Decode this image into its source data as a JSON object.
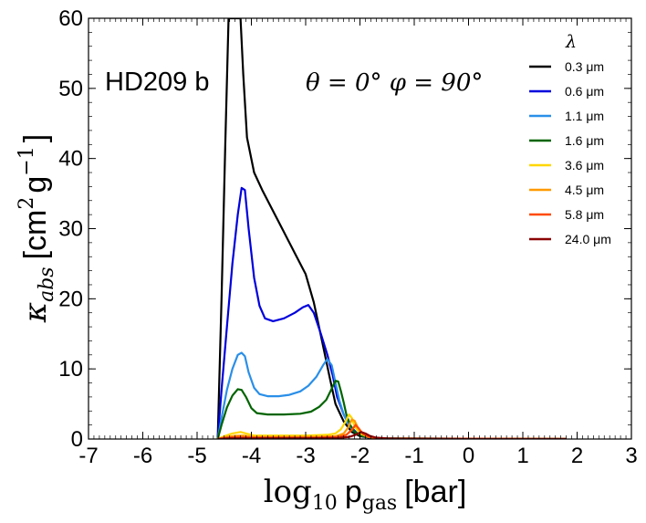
{
  "chart_data": {
    "type": "line",
    "title": "",
    "xlabel": "log10 p_gas [bar]",
    "xlabel_parts": {
      "main": "log",
      "sub_main": "10",
      "var": "p",
      "sub_var": "gas",
      "unit": "[bar]"
    },
    "ylabel": "κ_abs [cm^2 g^-1]",
    "ylabel_parts": {
      "kappa": "κ",
      "kappa_sub": "abs",
      "unit_open": "[cm",
      "exp1": "2",
      "unit_mid": "g",
      "exp2": "−1",
      "unit_close": "]"
    },
    "xlim": [
      -7,
      3
    ],
    "ylim": [
      0,
      60
    ],
    "xticks": [
      -7,
      -6,
      -5,
      -4,
      -3,
      -2,
      -1,
      0,
      1,
      2,
      3
    ],
    "yticks": [
      0,
      10,
      20,
      30,
      40,
      50,
      60
    ],
    "annotations": {
      "planet": "HD209 b",
      "angles": "θ = 0°  φ = 90°"
    },
    "legend": {
      "title": "λ",
      "location": "top-right"
    },
    "series": [
      {
        "name": "0.3 μm",
        "color": "#000000",
        "points": [
          [
            -4.62,
            0
          ],
          [
            -4.55,
            20
          ],
          [
            -4.48,
            42
          ],
          [
            -4.42,
            60
          ],
          [
            -4.2,
            60
          ],
          [
            -4.15,
            52
          ],
          [
            -4.08,
            43
          ],
          [
            -3.95,
            38
          ],
          [
            -3.8,
            35.5
          ],
          [
            -3.6,
            32.5
          ],
          [
            -3.4,
            29.5
          ],
          [
            -3.2,
            26.5
          ],
          [
            -3.0,
            23.5
          ],
          [
            -2.85,
            19.5
          ],
          [
            -2.7,
            14
          ],
          [
            -2.55,
            8.5
          ],
          [
            -2.45,
            5
          ],
          [
            -2.3,
            2.5
          ],
          [
            -2.15,
            1
          ],
          [
            -2.0,
            0.4
          ],
          [
            -1.8,
            0.15
          ],
          [
            -1.5,
            0.05
          ],
          [
            1.8,
            0
          ]
        ]
      },
      {
        "name": "0.6 μm",
        "color": "#0000dd",
        "points": [
          [
            -4.62,
            0
          ],
          [
            -4.55,
            7
          ],
          [
            -4.45,
            16
          ],
          [
            -4.35,
            25
          ],
          [
            -4.25,
            32
          ],
          [
            -4.18,
            35.8
          ],
          [
            -4.12,
            35.5
          ],
          [
            -4.05,
            30
          ],
          [
            -3.95,
            23
          ],
          [
            -3.85,
            19
          ],
          [
            -3.75,
            17.2
          ],
          [
            -3.6,
            16.8
          ],
          [
            -3.4,
            17.2
          ],
          [
            -3.2,
            18
          ],
          [
            -3.05,
            18.8
          ],
          [
            -2.95,
            19.1
          ],
          [
            -2.85,
            18
          ],
          [
            -2.72,
            15
          ],
          [
            -2.6,
            12
          ],
          [
            -2.5,
            9
          ],
          [
            -2.42,
            6
          ],
          [
            -2.3,
            3.5
          ],
          [
            -2.2,
            2
          ],
          [
            -2.05,
            0.8
          ],
          [
            -1.9,
            0.3
          ],
          [
            -1.6,
            0.05
          ],
          [
            1.8,
            0
          ]
        ]
      },
      {
        "name": "1.1 μm",
        "color": "#2a8fe8",
        "points": [
          [
            -4.62,
            0
          ],
          [
            -4.55,
            3
          ],
          [
            -4.45,
            7
          ],
          [
            -4.35,
            10
          ],
          [
            -4.25,
            12
          ],
          [
            -4.18,
            12.3
          ],
          [
            -4.12,
            11.8
          ],
          [
            -4.05,
            9.5
          ],
          [
            -3.95,
            7.3
          ],
          [
            -3.85,
            6.4
          ],
          [
            -3.7,
            6.1
          ],
          [
            -3.5,
            6.1
          ],
          [
            -3.3,
            6.3
          ],
          [
            -3.1,
            6.8
          ],
          [
            -2.95,
            7.6
          ],
          [
            -2.8,
            8.9
          ],
          [
            -2.68,
            10.5
          ],
          [
            -2.6,
            11.4
          ],
          [
            -2.52,
            10.5
          ],
          [
            -2.45,
            8
          ],
          [
            -2.38,
            5.5
          ],
          [
            -2.3,
            3.5
          ],
          [
            -2.22,
            2.2
          ],
          [
            -2.1,
            1
          ],
          [
            -1.95,
            0.4
          ],
          [
            -1.7,
            0.1
          ],
          [
            1.8,
            0
          ]
        ]
      },
      {
        "name": "1.6 μm",
        "color": "#006400",
        "points": [
          [
            -4.62,
            0
          ],
          [
            -4.55,
            2
          ],
          [
            -4.45,
            4.5
          ],
          [
            -4.35,
            6.2
          ],
          [
            -4.25,
            7.1
          ],
          [
            -4.18,
            7.0
          ],
          [
            -4.1,
            6
          ],
          [
            -4.0,
            4.4
          ],
          [
            -3.9,
            3.7
          ],
          [
            -3.7,
            3.5
          ],
          [
            -3.4,
            3.5
          ],
          [
            -3.1,
            3.6
          ],
          [
            -2.9,
            3.9
          ],
          [
            -2.75,
            4.6
          ],
          [
            -2.62,
            5.6
          ],
          [
            -2.52,
            7.2
          ],
          [
            -2.45,
            8.3
          ],
          [
            -2.4,
            8.2
          ],
          [
            -2.35,
            6.8
          ],
          [
            -2.3,
            5.2
          ],
          [
            -2.25,
            3.5
          ],
          [
            -2.18,
            2
          ],
          [
            -2.1,
            1
          ],
          [
            -1.95,
            0.4
          ],
          [
            -1.7,
            0.1
          ],
          [
            1.8,
            0
          ]
        ]
      },
      {
        "name": "3.6 μm",
        "color": "#ffd700",
        "points": [
          [
            -4.62,
            0
          ],
          [
            -4.5,
            0.4
          ],
          [
            -4.35,
            0.8
          ],
          [
            -4.2,
            1
          ],
          [
            -4.1,
            0.8
          ],
          [
            -3.95,
            0.5
          ],
          [
            -3.6,
            0.5
          ],
          [
            -3.0,
            0.5
          ],
          [
            -2.6,
            0.6
          ],
          [
            -2.45,
            0.8
          ],
          [
            -2.35,
            1.4
          ],
          [
            -2.27,
            2.4
          ],
          [
            -2.2,
            3.5
          ],
          [
            -2.15,
            3.0
          ],
          [
            -2.1,
            1.8
          ],
          [
            -2.0,
            0.8
          ],
          [
            -1.85,
            0.3
          ],
          [
            -1.6,
            0.05
          ],
          [
            1.8,
            0
          ]
        ]
      },
      {
        "name": "4.5 μm",
        "color": "#ff9a00",
        "points": [
          [
            -4.62,
            0
          ],
          [
            -4.5,
            0.25
          ],
          [
            -4.3,
            0.45
          ],
          [
            -4.15,
            0.5
          ],
          [
            -3.95,
            0.3
          ],
          [
            -3.5,
            0.3
          ],
          [
            -2.8,
            0.3
          ],
          [
            -2.45,
            0.4
          ],
          [
            -2.3,
            0.8
          ],
          [
            -2.22,
            1.6
          ],
          [
            -2.15,
            2.8
          ],
          [
            -2.1,
            2.6
          ],
          [
            -2.03,
            1.5
          ],
          [
            -1.95,
            0.7
          ],
          [
            -1.8,
            0.25
          ],
          [
            -1.55,
            0.05
          ],
          [
            1.8,
            0
          ]
        ]
      },
      {
        "name": "5.8 μm",
        "color": "#ff4a00",
        "points": [
          [
            -4.62,
            0
          ],
          [
            -4.5,
            0.15
          ],
          [
            -4.25,
            0.3
          ],
          [
            -3.95,
            0.2
          ],
          [
            -3.5,
            0.2
          ],
          [
            -2.8,
            0.2
          ],
          [
            -2.4,
            0.3
          ],
          [
            -2.25,
            0.6
          ],
          [
            -2.15,
            1.3
          ],
          [
            -2.08,
            2.0
          ],
          [
            -2.02,
            1.5
          ],
          [
            -1.95,
            0.8
          ],
          [
            -1.85,
            0.3
          ],
          [
            -1.6,
            0.08
          ],
          [
            1.8,
            0
          ]
        ]
      },
      {
        "name": "24.0 μm",
        "color": "#8b0000",
        "points": [
          [
            -4.62,
            0
          ],
          [
            -4.4,
            0.1
          ],
          [
            -4.0,
            0.1
          ],
          [
            -3.0,
            0.1
          ],
          [
            -2.4,
            0.15
          ],
          [
            -2.2,
            0.3
          ],
          [
            -2.08,
            0.6
          ],
          [
            -1.98,
            1.0
          ],
          [
            -1.9,
            0.8
          ],
          [
            -1.82,
            0.45
          ],
          [
            -1.7,
            0.2
          ],
          [
            -1.5,
            0.08
          ],
          [
            -1.2,
            0.03
          ],
          [
            1.8,
            0
          ]
        ]
      }
    ]
  }
}
